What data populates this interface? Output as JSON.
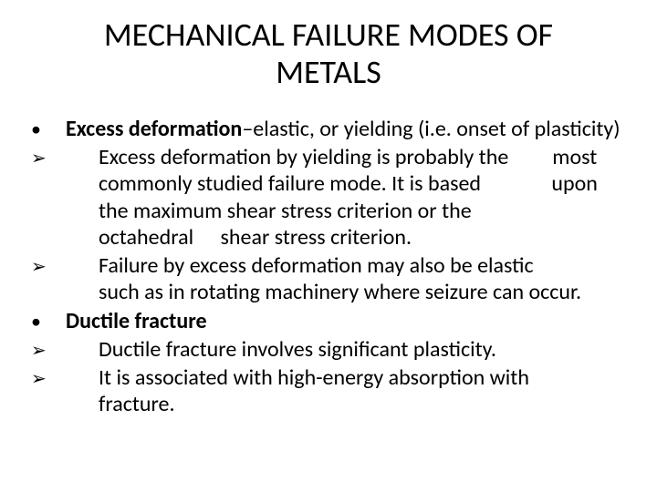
{
  "title_fontsize": 36,
  "body_fontsize": 24,
  "text_color": "#000000",
  "background_color": "#ffffff",
  "bullet_glyph": "•",
  "arrow_glyph": "➢",
  "title_line1": "MECHANICAL FAILURE MODES OF",
  "title_line2": "METALS",
  "b1_bold": "Excess deformation",
  "b1_rest": "–elastic, or yielding (i.e. onset of plasticity)",
  "a1_l1": "Excess deformation by yielding is probably the  most",
  "a1_l2": "commonly studied failure mode. It is based     upon",
  "a1_l3": "the maximum shear stress criterion or the",
  "a1_l4": "octahedral  shear stress criterion.",
  "a2_l1": "Failure by excess deformation may also be elastic",
  "a2_l2": "such as in rotating machinery where seizure can occur.",
  "b2_bold": "Ductile fracture",
  "a3_l1": "Ductile fracture involves significant plasticity.",
  "a4_l1": "It is associated with high-energy absorption with",
  "a4_l2": "fracture."
}
